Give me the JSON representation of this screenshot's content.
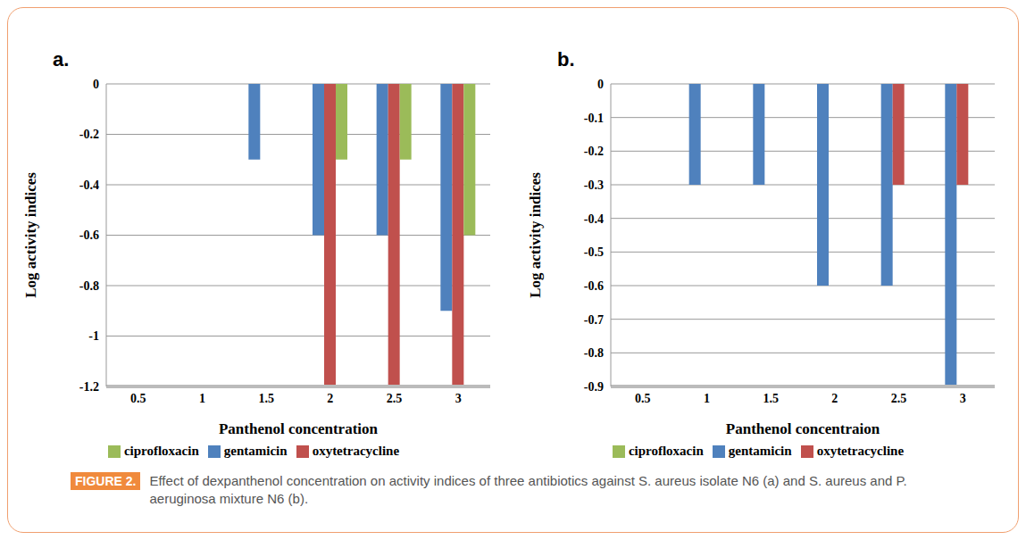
{
  "chart_data": [
    {
      "type": "bar",
      "title": "a.",
      "x_label": "Panthenol concentration",
      "y_label": "Log activity indices",
      "categories": [
        "0.5",
        "1",
        "1.5",
        "2",
        "2.5",
        "3"
      ],
      "series": [
        {
          "name": "gentamicin",
          "color": "#4f81bd",
          "values": [
            0,
            0,
            -0.3,
            -0.6,
            -0.6,
            -0.9
          ]
        },
        {
          "name": "oxytetracycline",
          "color": "#c0504d",
          "values": [
            0,
            0,
            0,
            -1.2,
            -1.2,
            -1.2
          ]
        },
        {
          "name": "ciprofloxacin",
          "color": "#9bbb59",
          "values": [
            0,
            0,
            0,
            -0.3,
            -0.3,
            -0.6
          ]
        }
      ],
      "ylim": [
        -1.2,
        0
      ],
      "yticks": [
        -1.2,
        -1,
        -0.8,
        -0.6,
        -0.4,
        -0.2,
        0
      ],
      "grid": true,
      "legend": "bottom"
    },
    {
      "type": "bar",
      "title": "b.",
      "x_label": "Panthenol concentraion",
      "y_label": "Log activity indices",
      "categories": [
        "0.5",
        "1",
        "1.5",
        "2",
        "2.5",
        "3"
      ],
      "series": [
        {
          "name": "gentamicin",
          "color": "#4f81bd",
          "values": [
            0,
            -0.3,
            -0.3,
            -0.6,
            -0.6,
            -0.9
          ]
        },
        {
          "name": "oxytetracycline",
          "color": "#c0504d",
          "values": [
            0,
            0,
            0,
            0,
            -0.3,
            -0.3
          ]
        },
        {
          "name": "ciprofloxacin",
          "color": "#9bbb59",
          "values": [
            0,
            0,
            0,
            0,
            0,
            0
          ]
        }
      ],
      "ylim": [
        -0.9,
        0
      ],
      "yticks": [
        -0.9,
        -0.8,
        -0.7,
        -0.6,
        -0.5,
        -0.4,
        -0.3,
        -0.2,
        -0.1,
        0
      ],
      "grid": true,
      "legend": "bottom"
    }
  ],
  "caption": {
    "label": "FIGURE 2.",
    "text": "Effect of dexpanthenol concentration on activity indices of three antibiotics against S. aureus isolate N6 (a) and S. aureus and P. aeruginosa mixture N6 (b)."
  }
}
